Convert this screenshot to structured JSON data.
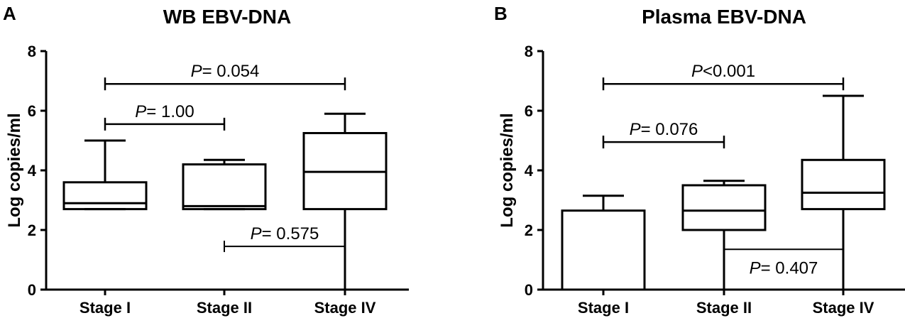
{
  "chart_data": [
    {
      "panel_label": "A",
      "type": "box",
      "title": "WB EBV-DNA",
      "ylabel": "Log copies/ml",
      "ylim": [
        0,
        8
      ],
      "yticks": [
        "0",
        "2",
        "4",
        "6",
        "8"
      ],
      "categories": [
        "Stage I",
        "Stage II",
        "Stage IV"
      ],
      "boxes": [
        {
          "min": 2.7,
          "q1": 2.7,
          "median": 2.9,
          "q3": 3.6,
          "max": 5.0
        },
        {
          "min": 2.7,
          "q1": 2.7,
          "median": 2.8,
          "q3": 4.2,
          "max": 4.35
        },
        {
          "min": 0.0,
          "q1": 2.7,
          "median": 3.95,
          "q3": 5.25,
          "max": 5.9
        }
      ],
      "comparisons": [
        {
          "p_label": "P",
          "p_value": "= 0.054",
          "from": 0,
          "to": 2,
          "y": 6.9
        },
        {
          "p_label": "P",
          "p_value": "= 1.00",
          "from": 0,
          "to": 1,
          "y": 5.55
        },
        {
          "p_label": "P",
          "p_value": "= 0.575",
          "from": 1,
          "to": 2,
          "y": 1.45
        }
      ]
    },
    {
      "panel_label": "B",
      "type": "box",
      "title": "Plasma EBV-DNA",
      "ylabel": "Log copies/ml",
      "ylim": [
        0,
        8
      ],
      "yticks": [
        "0",
        "2",
        "4",
        "6",
        "8"
      ],
      "categories": [
        "Stage I",
        "Stage II",
        "Stage IV"
      ],
      "boxes": [
        {
          "min": 0.0,
          "q1": 0.0,
          "median": 0.0,
          "q3": 2.65,
          "max": 3.15
        },
        {
          "min": 0.0,
          "q1": 2.0,
          "median": 2.65,
          "q3": 3.5,
          "max": 3.65
        },
        {
          "min": 0.0,
          "q1": 2.7,
          "median": 3.25,
          "q3": 4.35,
          "max": 6.5
        }
      ],
      "comparisons": [
        {
          "p_label": "P",
          "p_value": "<0.001",
          "from": 0,
          "to": 2,
          "y": 6.9
        },
        {
          "p_label": "P",
          "p_value": "= 0.076",
          "from": 0,
          "to": 1,
          "y": 4.95
        },
        {
          "p_label": "P",
          "p_value": "= 0.407",
          "from": 1,
          "to": 2,
          "y": 1.35
        }
      ]
    }
  ]
}
